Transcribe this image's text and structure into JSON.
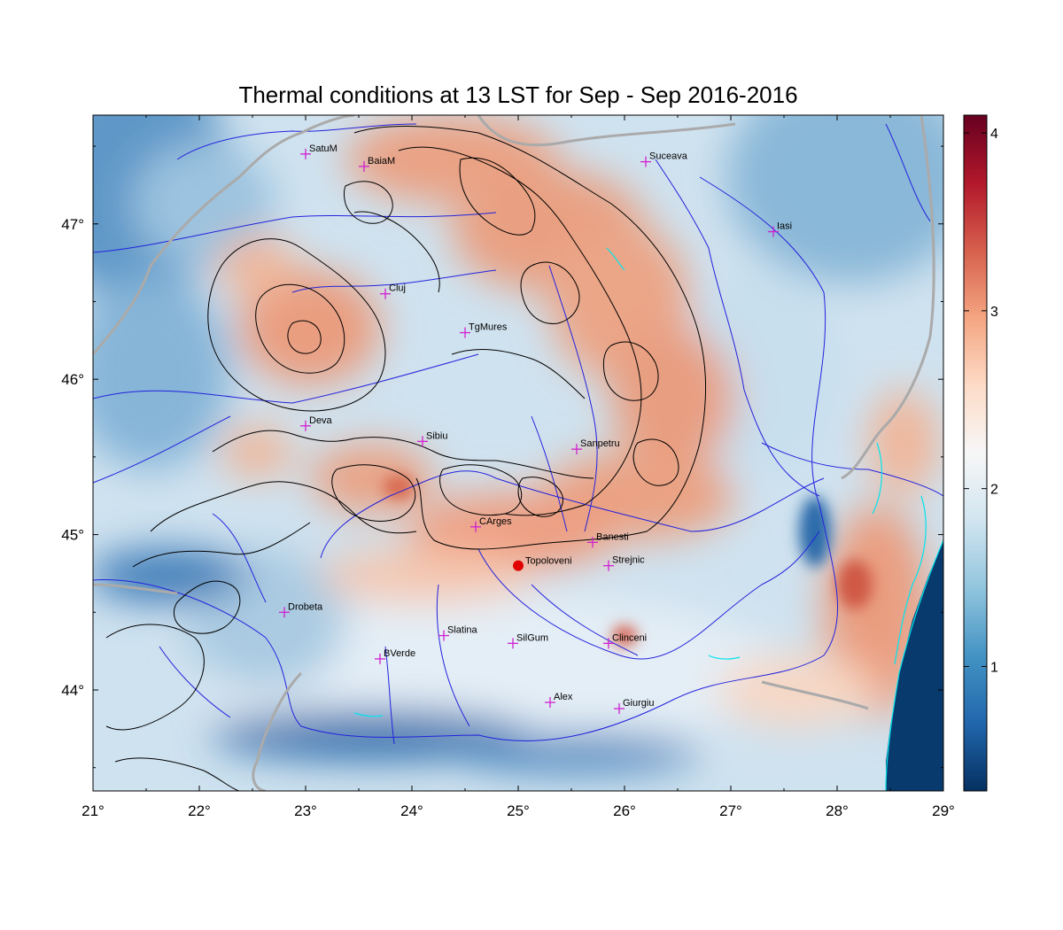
{
  "title": "Thermal conditions at 13 LST for Sep - Sep  2016-2016",
  "x_ticks": [
    {
      "value": 21,
      "label": "21°"
    },
    {
      "value": 22,
      "label": "22°"
    },
    {
      "value": 23,
      "label": "23°"
    },
    {
      "value": 24,
      "label": "24°"
    },
    {
      "value": 25,
      "label": "25°"
    },
    {
      "value": 26,
      "label": "26°"
    },
    {
      "value": 27,
      "label": "27°"
    },
    {
      "value": 28,
      "label": "28°"
    },
    {
      "value": 29,
      "label": "29°"
    }
  ],
  "y_ticks": [
    {
      "value": 44,
      "label": "44°"
    },
    {
      "value": 45,
      "label": "45°"
    },
    {
      "value": 46,
      "label": "46°"
    },
    {
      "value": 47,
      "label": "47°"
    }
  ],
  "colorbar": {
    "ticks": [
      {
        "value": 1,
        "label": "1"
      },
      {
        "value": 2,
        "label": "2"
      },
      {
        "value": 3,
        "label": "3"
      },
      {
        "value": 4,
        "label": "4"
      }
    ],
    "range": [
      0.3,
      4.1
    ],
    "colors": [
      "#053061",
      "#2166ac",
      "#4393c3",
      "#92c5de",
      "#d1e5f0",
      "#f7f7f7",
      "#fddbc7",
      "#f4a582",
      "#d6604d",
      "#b2182b",
      "#67001f"
    ]
  },
  "chart_data": {
    "type": "map",
    "xlim": [
      21,
      29
    ],
    "ylim": [
      43.35,
      47.7
    ],
    "cities": [
      {
        "name": "SatuM",
        "lon": 23.0,
        "lat": 47.45
      },
      {
        "name": "BaiaM",
        "lon": 23.55,
        "lat": 47.37
      },
      {
        "name": "Suceava",
        "lon": 26.2,
        "lat": 47.4
      },
      {
        "name": "Iasi",
        "lon": 27.4,
        "lat": 46.95
      },
      {
        "name": "Cluj",
        "lon": 23.75,
        "lat": 46.55
      },
      {
        "name": "TgMures",
        "lon": 24.5,
        "lat": 46.3
      },
      {
        "name": "Deva",
        "lon": 23.0,
        "lat": 45.7
      },
      {
        "name": "Sibiu",
        "lon": 24.1,
        "lat": 45.6
      },
      {
        "name": "Sanpetru",
        "lon": 25.55,
        "lat": 45.55
      },
      {
        "name": "CArges",
        "lon": 24.6,
        "lat": 45.05
      },
      {
        "name": "Banesti",
        "lon": 25.7,
        "lat": 44.95
      },
      {
        "name": "Strejnic",
        "lon": 25.85,
        "lat": 44.8
      },
      {
        "name": "Drobeta",
        "lon": 22.8,
        "lat": 44.5
      },
      {
        "name": "Slatina",
        "lon": 24.3,
        "lat": 44.35
      },
      {
        "name": "SilGum",
        "lon": 24.95,
        "lat": 44.3
      },
      {
        "name": "Clinceni",
        "lon": 25.85,
        "lat": 44.3
      },
      {
        "name": "BVerde",
        "lon": 23.7,
        "lat": 44.2
      },
      {
        "name": "Alex",
        "lon": 25.3,
        "lat": 43.92
      },
      {
        "name": "Giurgiu",
        "lon": 25.95,
        "lat": 43.88
      }
    ],
    "marker": {
      "name": "Topoloveni",
      "lon": 25.0,
      "lat": 44.8,
      "color": "#e00000"
    },
    "colors": {
      "city_marker": "#d020d0",
      "rivers": "#2222dd",
      "borders": "#aaaaaa",
      "contours": "#000000",
      "coast": "#00e5ee"
    }
  }
}
